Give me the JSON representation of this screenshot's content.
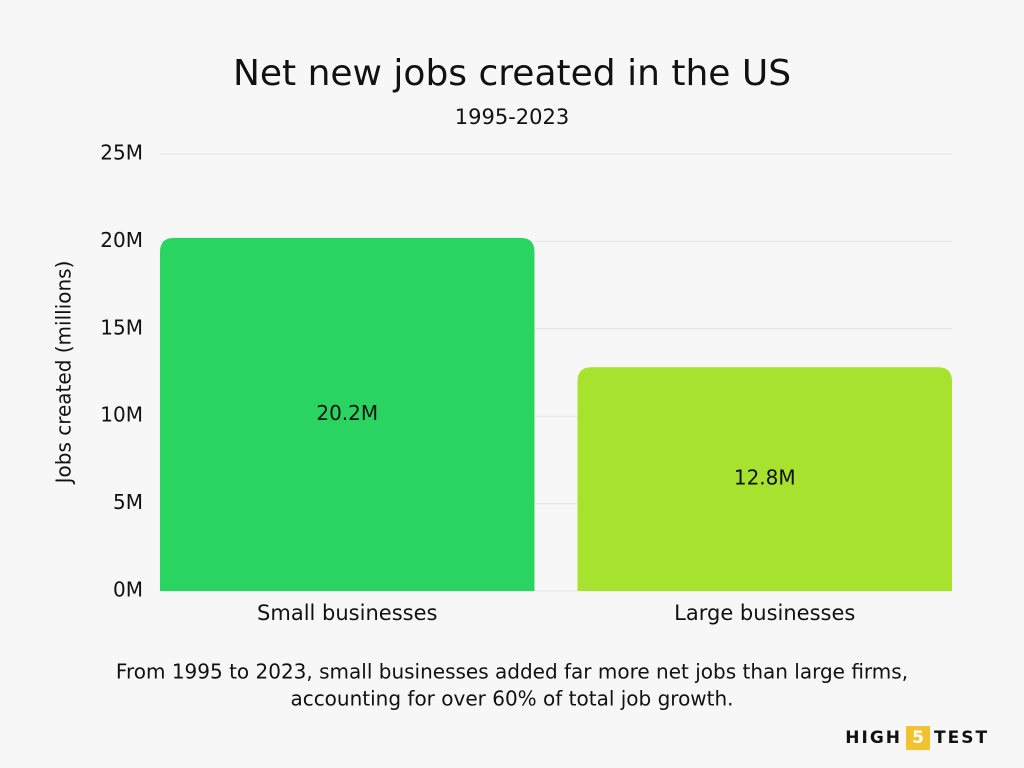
{
  "chart_data": {
    "type": "bar",
    "title": "Net new jobs created in the US",
    "subtitle": "1995-2023",
    "y_label": "Jobs created (millions)",
    "categories": [
      "Small businesses",
      "Large businesses"
    ],
    "values": [
      20.2,
      12.8
    ],
    "value_labels": [
      "20.2M",
      "12.8M"
    ],
    "colors": [
      "#2ad460",
      "#a6e22e"
    ],
    "ylim": [
      0,
      25
    ],
    "yticks": [
      {
        "value": 0,
        "label": "0M"
      },
      {
        "value": 5,
        "label": "5M"
      },
      {
        "value": 10,
        "label": "10M"
      },
      {
        "value": 15,
        "label": "15M"
      },
      {
        "value": 20,
        "label": "20M"
      },
      {
        "value": 25,
        "label": "25M"
      }
    ],
    "grid": true,
    "annotation": [
      "From 1995 to 2023, small businesses added far more net jobs than large firms,",
      "accounting for over 60% of total job growth."
    ]
  },
  "logo": {
    "left": "HIGH",
    "badge": "5",
    "right": "TEST"
  }
}
